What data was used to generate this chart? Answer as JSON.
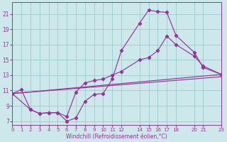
{
  "xlabel": "Windchill (Refroidissement éolien,°C)",
  "bg_color": "#cce8ea",
  "grid_color": "#99cccc",
  "line_color": "#993399",
  "xlim": [
    0,
    23
  ],
  "ylim": [
    6.5,
    22.5
  ],
  "yticks": [
    7,
    9,
    11,
    13,
    15,
    17,
    19,
    21
  ],
  "xticks": [
    0,
    1,
    2,
    3,
    4,
    5,
    6,
    7,
    8,
    9,
    10,
    11,
    12,
    14,
    15,
    16,
    17,
    18,
    20,
    21,
    23
  ],
  "line1_x": [
    0,
    1,
    2,
    3,
    4,
    5,
    6,
    7,
    8,
    9,
    10,
    11,
    12,
    14,
    15,
    16,
    17,
    18,
    20,
    21,
    23
  ],
  "line1_y": [
    10.6,
    11.1,
    8.5,
    8.0,
    8.1,
    8.1,
    7.0,
    7.4,
    9.6,
    10.5,
    10.6,
    12.5,
    16.2,
    19.8,
    21.5,
    21.3,
    21.2,
    18.2,
    16.0,
    14.0,
    13.1
  ],
  "line2_x": [
    0,
    2,
    3,
    4,
    5,
    6,
    7,
    8,
    9,
    10,
    11,
    12,
    14,
    15,
    16,
    17,
    18,
    20,
    21,
    23
  ],
  "line2_y": [
    10.6,
    8.5,
    8.0,
    8.1,
    8.1,
    7.6,
    10.8,
    12.0,
    12.3,
    12.5,
    13.0,
    13.5,
    15.0,
    15.3,
    16.2,
    18.1,
    17.0,
    15.5,
    14.2,
    13.1
  ],
  "line3_x": [
    0,
    23
  ],
  "line3_y": [
    10.6,
    13.1
  ],
  "line4_x": [
    0,
    23
  ],
  "line4_y": [
    10.6,
    12.8
  ]
}
